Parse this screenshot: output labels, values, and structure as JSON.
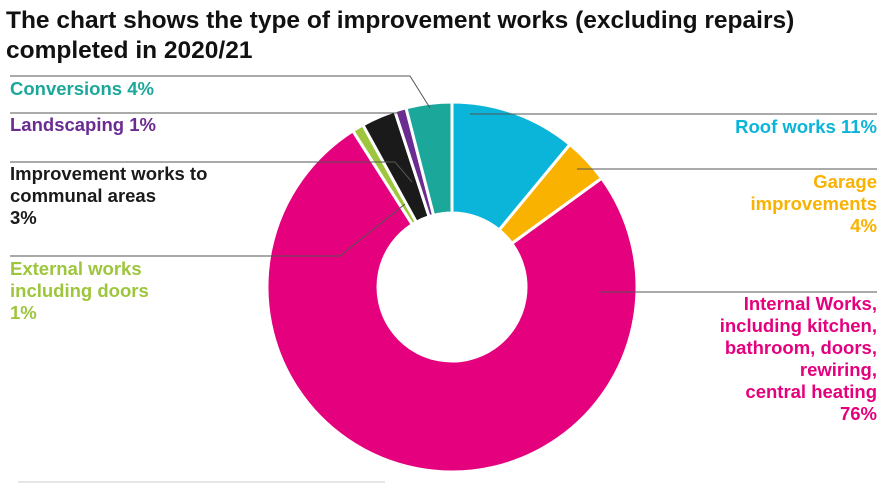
{
  "chart_data": {
    "type": "pie",
    "title_lines": [
      "The chart shows the type of improvement works (excluding repairs)",
      "completed in 2020/21"
    ],
    "slices": [
      {
        "label_lines": [
          "Roof works 11%"
        ],
        "value": 11,
        "color": "#0BB4D9"
      },
      {
        "label_lines": [
          "Garage",
          "improvements",
          "4%"
        ],
        "value": 4,
        "color": "#F9B200"
      },
      {
        "label_lines": [
          "Internal Works,",
          "including kitchen,",
          "bathroom, doors,",
          "rewiring,",
          "central heating",
          "76%"
        ],
        "value": 76,
        "color": "#E5007E"
      },
      {
        "label_lines": [
          "External works",
          "including doors",
          "1%"
        ],
        "value": 1,
        "color": "#9DC63C"
      },
      {
        "label_lines": [
          "Improvement works to",
          "communal areas",
          "3%"
        ],
        "value": 3,
        "color": "#1A1A1A",
        "text_color": "#1A1A1A"
      },
      {
        "label_lines": [
          "Landscaping 1%"
        ],
        "value": 1,
        "color": "#6B2C91"
      },
      {
        "label_lines": [
          "Conversions 4%"
        ],
        "value": 4,
        "color": "#1BA89A"
      }
    ],
    "legend": "none (direct labels with leader lines)",
    "donut": true
  }
}
